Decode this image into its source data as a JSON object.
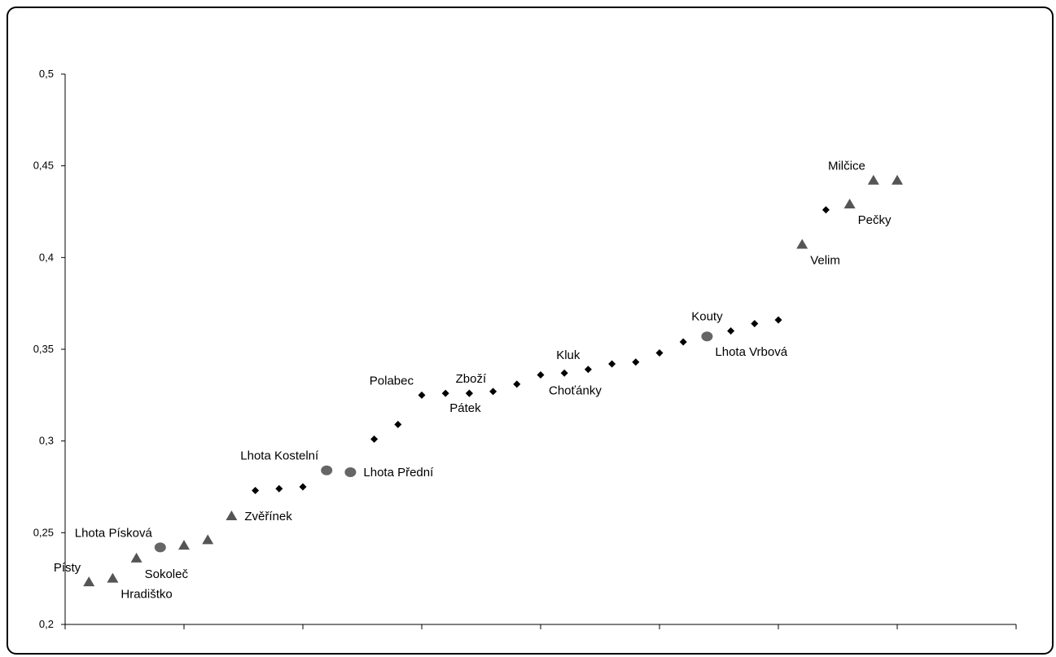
{
  "chart_data": {
    "type": "scatter",
    "title": "",
    "xlabel": "",
    "ylabel": "",
    "ylim": [
      0.2,
      0.5
    ],
    "yticks": [
      "0,2",
      "0,25",
      "0,3",
      "0,35",
      "0,4",
      "0,45",
      "0,5"
    ],
    "ytick_values": [
      0.2,
      0.25,
      0.3,
      0.35,
      0.4,
      0.45,
      0.5
    ],
    "xlim": [
      0,
      40
    ],
    "x_tick_count": 8,
    "grid": false,
    "colors": {
      "diamond": "#000000",
      "triangle": "#555555",
      "circle": "#666666"
    },
    "series": [
      {
        "marker": "triangle",
        "points": [
          {
            "x": 1,
            "y": 0.223,
            "label": "Písty",
            "label_pos": "above-left"
          },
          {
            "x": 2,
            "y": 0.225,
            "label": "Hradištko",
            "label_pos": "below-right"
          },
          {
            "x": 3,
            "y": 0.236,
            "label": "Sokoleč",
            "label_pos": "below-right"
          },
          {
            "x": 5,
            "y": 0.243
          },
          {
            "x": 6,
            "y": 0.246
          },
          {
            "x": 7,
            "y": 0.259,
            "label": "Zvěřínek",
            "label_pos": "right"
          },
          {
            "x": 31,
            "y": 0.407,
            "label": "Velim",
            "label_pos": "below-right"
          },
          {
            "x": 33,
            "y": 0.429,
            "label": "Pečky",
            "label_pos": "below-right"
          },
          {
            "x": 34,
            "y": 0.442,
            "label": "Milčice",
            "label_pos": "above-left"
          },
          {
            "x": 35,
            "y": 0.442
          }
        ]
      },
      {
        "marker": "circle",
        "points": [
          {
            "x": 4,
            "y": 0.242,
            "label": "Lhota Písková",
            "label_pos": "above-left"
          },
          {
            "x": 11,
            "y": 0.284,
            "label": "Lhota Kostelní",
            "label_pos": "above-left"
          },
          {
            "x": 12,
            "y": 0.283,
            "label": "Lhota Přední",
            "label_pos": "right"
          },
          {
            "x": 27,
            "y": 0.357,
            "label": "Lhota Vrbová",
            "label_pos": "below-right"
          }
        ]
      },
      {
        "marker": "diamond",
        "points": [
          {
            "x": 8,
            "y": 0.273
          },
          {
            "x": 9,
            "y": 0.274
          },
          {
            "x": 10,
            "y": 0.275
          },
          {
            "x": 13,
            "y": 0.301
          },
          {
            "x": 14,
            "y": 0.309
          },
          {
            "x": 15,
            "y": 0.325,
            "label": "Polabec",
            "label_pos": "above-left"
          },
          {
            "x": 16,
            "y": 0.326
          },
          {
            "x": 17,
            "y": 0.326,
            "label": "Pátek",
            "label_pos": "below"
          },
          {
            "x": 17,
            "y": 0.326,
            "label": "Zboží",
            "label_pos": "above"
          },
          {
            "x": 18,
            "y": 0.327
          },
          {
            "x": 19,
            "y": 0.331
          },
          {
            "x": 20,
            "y": 0.336,
            "label": "Choťánky",
            "label_pos": "below-right"
          },
          {
            "x": 21,
            "y": 0.337
          },
          {
            "x": 22,
            "y": 0.339,
            "label": "Kluk",
            "label_pos": "above-left"
          },
          {
            "x": 23,
            "y": 0.342
          },
          {
            "x": 24,
            "y": 0.343
          },
          {
            "x": 25,
            "y": 0.348
          },
          {
            "x": 26,
            "y": 0.354
          },
          {
            "x": 28,
            "y": 0.36,
            "label": "Kouty",
            "label_pos": "above-left"
          },
          {
            "x": 29,
            "y": 0.364
          },
          {
            "x": 30,
            "y": 0.366
          },
          {
            "x": 32,
            "y": 0.426
          }
        ]
      }
    ]
  }
}
